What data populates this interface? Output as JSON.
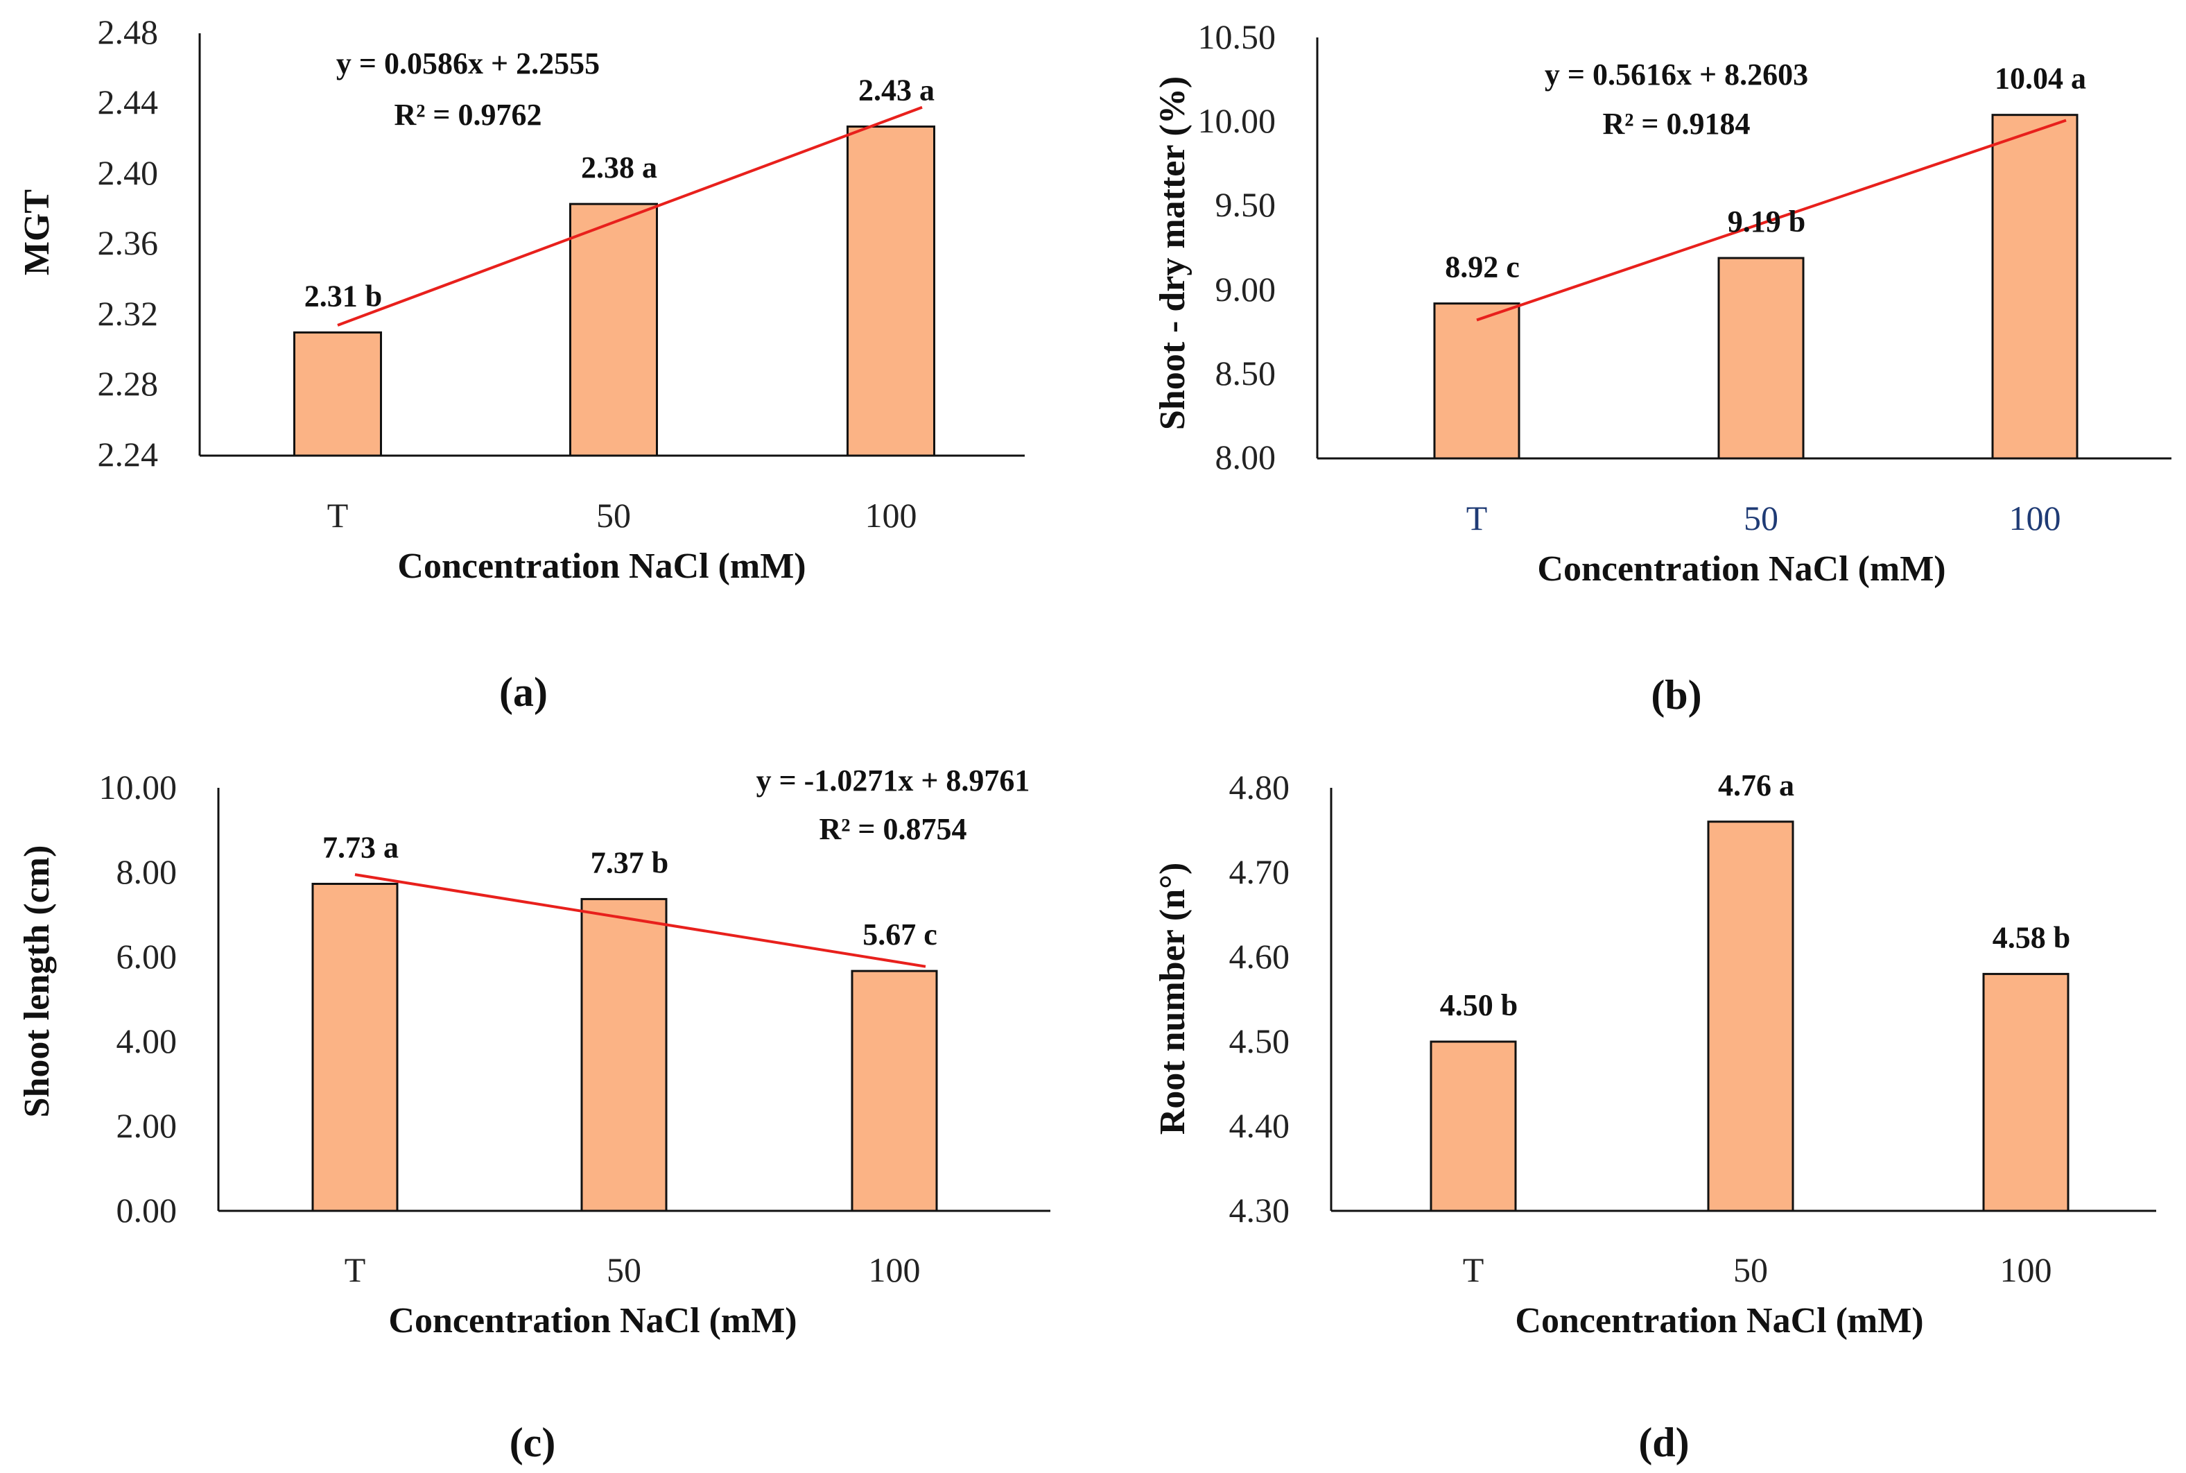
{
  "chart_data": [
    {
      "id": "a",
      "type": "bar",
      "panel_label": "(a)",
      "categories": [
        "T",
        "50",
        "100"
      ],
      "values": [
        2.31,
        2.383,
        2.427
      ],
      "data_labels": [
        "2.31 b",
        "2.38 a",
        "2.43 a"
      ],
      "ylabel": "MGT",
      "xlabel": "Concentration NaCl (mM)",
      "ylim": [
        2.24,
        2.48
      ],
      "yticks": [
        "2.24",
        "2.28",
        "2.32",
        "2.36",
        "2.40",
        "2.44",
        "2.48"
      ],
      "trendline": {
        "slope": 0.0586,
        "intercept": 2.2555
      },
      "equation": "y = 0.0586x + 2.2555",
      "r2": "R² = 0.9762",
      "bar_color": "#fbb385",
      "trend_color": "#e8201c",
      "tick_color": "#222222"
    },
    {
      "id": "b",
      "type": "bar",
      "panel_label": "(b)",
      "categories": [
        "T",
        "50",
        "100"
      ],
      "values": [
        8.92,
        9.19,
        10.04
      ],
      "data_labels": [
        "8.92 c",
        "9.19 b",
        "10.04 a"
      ],
      "ylabel": "Shoot - dry matter (%)",
      "xlabel": "Concentration NaCl (mM)",
      "ylim": [
        8.0,
        10.5
      ],
      "yticks": [
        "8.00",
        "8.50",
        "9.00",
        "9.50",
        "10.00",
        "10.50"
      ],
      "trendline": {
        "slope": 0.5616,
        "intercept": 8.2603
      },
      "equation": "y = 0.5616x + 8.2603",
      "r2": "R² = 0.9184",
      "bar_color": "#fbb385",
      "trend_color": "#e8201c",
      "tick_color": "#1f3b75"
    },
    {
      "id": "c",
      "type": "bar",
      "panel_label": "(c)",
      "categories": [
        "T",
        "50",
        "100"
      ],
      "values": [
        7.73,
        7.37,
        5.67
      ],
      "data_labels": [
        "7.73 a",
        "7.37 b",
        "5.67 c"
      ],
      "ylabel": "Shoot length (cm)",
      "xlabel": "Concentration NaCl (mM)",
      "ylim": [
        0,
        10
      ],
      "yticks": [
        "0.00",
        "2.00",
        "4.00",
        "6.00",
        "8.00",
        "10.00"
      ],
      "trendline": {
        "slope": -1.0271,
        "intercept": 8.9761
      },
      "equation": "y = -1.0271x + 8.9761",
      "r2": "R² = 0.8754",
      "bar_color": "#fbb385",
      "trend_color": "#e8201c",
      "tick_color": "#222222"
    },
    {
      "id": "d",
      "type": "bar",
      "panel_label": "(d)",
      "categories": [
        "T",
        "50",
        "100"
      ],
      "values": [
        4.5,
        4.76,
        4.58
      ],
      "data_labels": [
        "4.50 b",
        "4.76 a",
        "4.58 b"
      ],
      "ylabel": "Root number (n°)",
      "xlabel": "Concentration NaCl (mM)",
      "ylim": [
        4.3,
        4.8
      ],
      "yticks": [
        "4.30",
        "4.40",
        "4.50",
        "4.60",
        "4.70",
        "4.80"
      ],
      "trendline": null,
      "equation": "",
      "r2": "",
      "bar_color": "#fbb385",
      "trend_color": "#e8201c",
      "tick_color": "#222222"
    }
  ]
}
